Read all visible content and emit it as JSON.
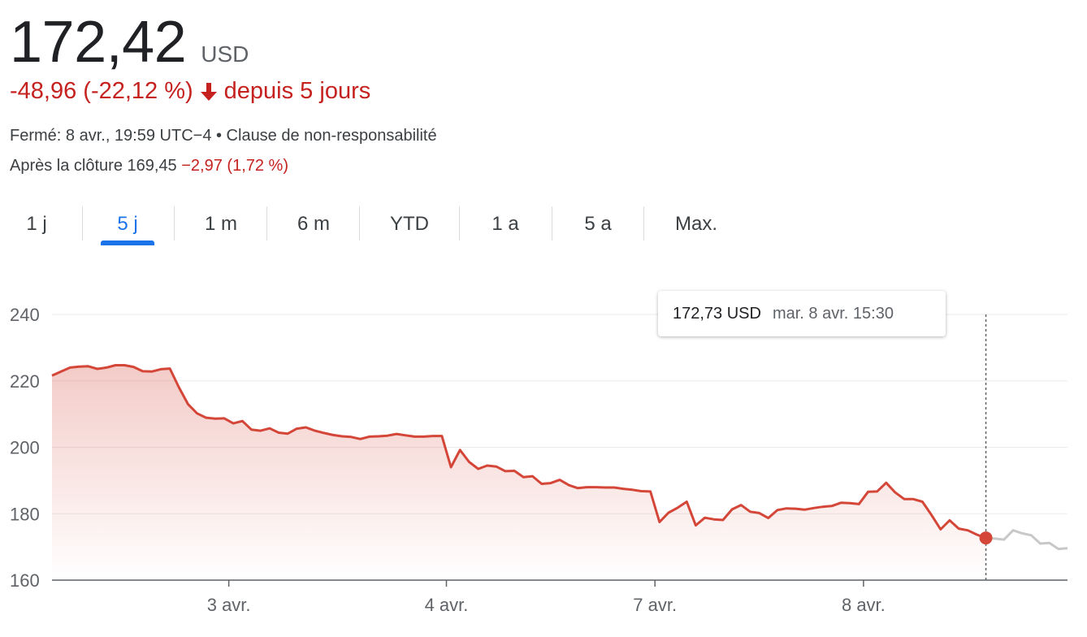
{
  "quote": {
    "price": "172,42",
    "currency": "USD",
    "change": "-48,96 (-22,12 %)",
    "change_period": "depuis 5 jours",
    "closed_label": "Fermé: 8 avr., 19:59 UTC−4 • Clause de non-responsabilité",
    "after_hours_label": "Après la clôture 169,45",
    "after_hours_change": "−2,97 (1,72 %)"
  },
  "tabs": [
    {
      "label": "1 j"
    },
    {
      "label": "5 j",
      "active": true
    },
    {
      "label": "1 m"
    },
    {
      "label": "6 m"
    },
    {
      "label": "YTD"
    },
    {
      "label": "1 a"
    },
    {
      "label": "5 a"
    },
    {
      "label": "Max."
    }
  ],
  "tooltip": {
    "value": "172,73 USD",
    "time": "mar. 8 avr. 15:30"
  },
  "colors": {
    "line": "#d44638",
    "after_hours": "#c8c8c8",
    "active_tab": "#1a73e8",
    "negative": "#c5221f"
  },
  "chart_data": {
    "type": "line",
    "x_tick_labels": [
      "3 avr.",
      "4 avr.",
      "7 avr.",
      "8 avr."
    ],
    "y_ticks": [
      240,
      220,
      200,
      180,
      160
    ],
    "ylim": [
      160,
      240
    ],
    "grid": true,
    "series": [
      {
        "values": [
          221.6,
          222.8,
          224,
          224.3,
          224.4,
          223.6,
          224,
          224.7,
          224.7,
          224.2,
          222.9,
          222.8,
          223.5,
          223.7,
          218,
          213,
          210.2,
          208.9,
          208.6,
          208.7,
          207.2,
          207.9,
          205.3,
          205,
          205.7,
          204.4,
          204.1,
          205.6,
          206,
          205,
          204.3,
          203.7,
          203.3,
          203.1,
          202.5,
          203.2,
          203.3,
          203.5,
          204,
          203.6,
          203.2,
          203.2,
          203.4,
          203.4,
          194,
          199.2,
          195.6,
          193.5,
          194.5,
          194.2,
          192.8,
          192.9,
          191,
          191.3,
          189,
          189.2,
          190.2,
          188.6,
          187.7,
          188,
          188,
          187.9,
          187.9,
          187.5,
          187.2,
          186.8,
          186.7,
          177.5,
          180.3,
          181.8,
          183.6,
          176.5,
          178.8,
          178.3,
          178.1,
          181.3,
          182.6,
          180.6,
          180.2,
          178.7,
          181.1,
          181.6,
          181.5,
          181.2,
          181.7,
          182.1,
          182.3,
          183.3,
          183.2,
          182.9,
          186.6,
          186.7,
          189.3,
          186.4,
          184.4,
          184.4,
          183.6,
          179.6,
          175.3,
          178,
          175.5,
          175,
          173.7,
          172.7
        ]
      },
      {
        "values": [
          172.7,
          172.5,
          172.2,
          175,
          174.1,
          173.5,
          171,
          171.2,
          169.4,
          169.6
        ]
      }
    ]
  }
}
